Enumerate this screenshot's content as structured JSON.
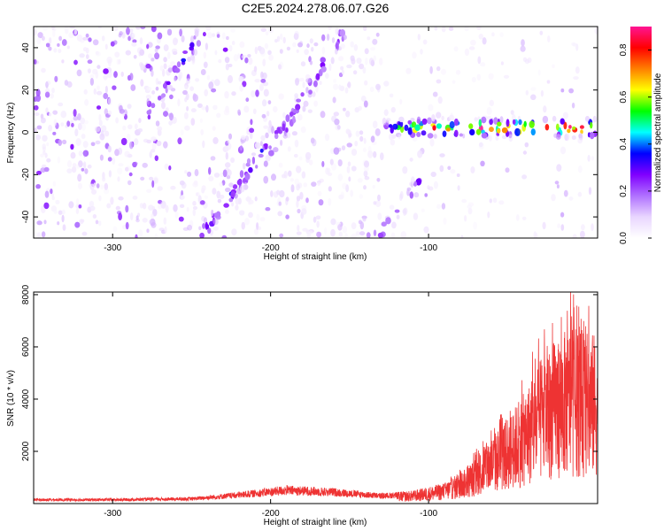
{
  "title": "C2E5.2024.278.06.07.G26",
  "chart_data": [
    {
      "type": "heatmap",
      "xlabel": "Height of straight line (km)",
      "ylabel": "Frequency (Hz)",
      "xlim": [
        -350,
        7
      ],
      "ylim": [
        -50,
        50
      ],
      "xticks": [
        -300,
        -200,
        -100
      ],
      "yticks": [
        -40,
        -20,
        0,
        20,
        40
      ],
      "grid": false,
      "colorbar": {
        "label": "Normalized spectral amplitude",
        "range": [
          0,
          0.9
        ],
        "ticks": [
          0.0,
          0.2,
          0.4,
          0.6,
          0.8
        ],
        "colors": [
          "#ffffff",
          "#e9d6ff",
          "#b070ff",
          "#8000ff",
          "#0000ff",
          "#00ffff",
          "#00ff00",
          "#ffff00",
          "#ff7f00",
          "#ff0000",
          "#ff1493"
        ]
      },
      "features": [
        {
          "kind": "diagonal_streak",
          "x_start": -278,
          "y_start": 10,
          "x_end": -240,
          "y_end": 50,
          "amplitude": 0.3
        },
        {
          "kind": "diagonal_streak",
          "x_start": -245,
          "y_start": -50,
          "x_end": -195,
          "y_end": 2,
          "amplitude": 0.3
        },
        {
          "kind": "diagonal_streak",
          "x_start": -200,
          "y_start": -10,
          "x_end": -152,
          "y_end": 50,
          "amplitude": 0.25
        },
        {
          "kind": "diagonal_streak",
          "x_start": -133,
          "y_start": -50,
          "x_end": -105,
          "y_end": -23,
          "amplitude": 0.25
        },
        {
          "kind": "horizontal_band",
          "x_start": -130,
          "x_end": 7,
          "y_center": 2,
          "amplitude": 0.8
        }
      ]
    },
    {
      "type": "line",
      "xlabel": "Height of straight line (km)",
      "ylabel": "SNR (10 * v/v)",
      "xlim": [
        -350,
        7
      ],
      "ylim": [
        0,
        8100
      ],
      "xticks": [
        -300,
        -200,
        -100
      ],
      "yticks": [
        2000,
        4000,
        6000,
        8000
      ],
      "series_color": "#ee3333",
      "envelope": {
        "x": [
          -350,
          -300,
          -250,
          -220,
          -190,
          -160,
          -130,
          -110,
          -90,
          -75,
          -60,
          -50,
          -40,
          -30,
          -20,
          -10,
          0,
          7
        ],
        "y": [
          200,
          200,
          250,
          450,
          700,
          600,
          400,
          500,
          800,
          1400,
          2600,
          3300,
          4200,
          5400,
          6300,
          6800,
          6600,
          6500
        ]
      }
    }
  ]
}
